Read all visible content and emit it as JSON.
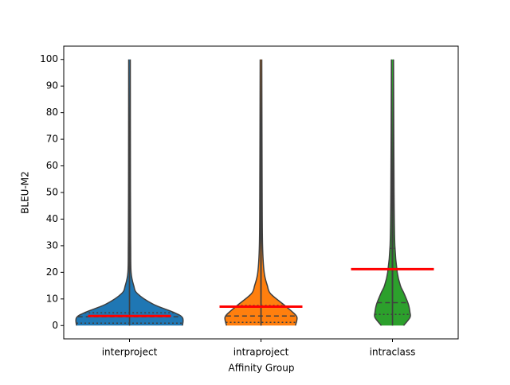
{
  "chart_data": {
    "type": "violin",
    "x_label": "Affinity Group",
    "y_label": "BLEU-M2",
    "categories": [
      "interproject",
      "intraproject",
      "intraclass"
    ],
    "colors": [
      "#1f77b4",
      "#ff7f0e",
      "#2ca02c"
    ],
    "density_y": [
      0,
      3,
      5,
      8,
      12,
      15,
      20,
      30,
      50,
      100
    ],
    "density": [
      [
        1.0,
        1.0,
        0.83,
        0.45,
        0.15,
        0.08,
        0.03,
        0.022,
        0.018,
        0.015
      ],
      [
        0.65,
        0.68,
        0.6,
        0.42,
        0.18,
        0.12,
        0.06,
        0.03,
        0.022,
        0.015
      ],
      [
        0.21,
        0.33,
        0.33,
        0.3,
        0.22,
        0.15,
        0.09,
        0.045,
        0.03,
        0.02
      ]
    ],
    "quartiles": [
      [
        0.9,
        3.3,
        4.8
      ],
      [
        1.2,
        3.6,
        7.5
      ],
      [
        4.2,
        8.6,
        29
      ]
    ],
    "means": [
      3.6,
      7.1,
      21.2
    ],
    "mean_color": "#ff0000",
    "ylim": [
      -5,
      105
    ],
    "yticks": [
      0,
      10,
      20,
      30,
      40,
      50,
      60,
      70,
      80,
      90,
      100
    ]
  }
}
